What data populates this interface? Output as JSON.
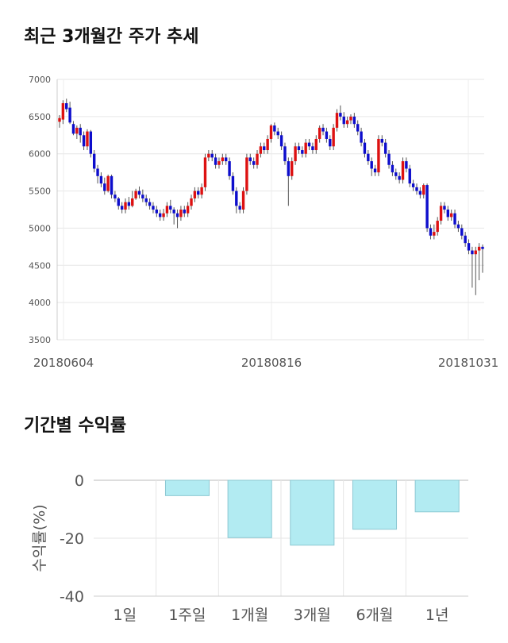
{
  "sections": {
    "price_title": "최근 3개월간 주가 추세",
    "return_title": "기간별 수익률"
  },
  "chart_data": [
    {
      "type": "candlestick",
      "title": "최근 3개월간 주가 추세",
      "ylim": [
        3500,
        7000
      ],
      "y_ticks": [
        3500,
        4000,
        4500,
        5000,
        5500,
        6000,
        6500,
        7000
      ],
      "x_ticks": [
        "20180604",
        "20180816",
        "20181031"
      ],
      "grid": true,
      "colors": {
        "up": "#dd1111",
        "down": "#0d0dcc",
        "wick": "#555555"
      },
      "candles": [
        [
          6430,
          6480,
          6350,
          6520
        ],
        [
          6460,
          6680,
          6400,
          6720
        ],
        [
          6680,
          6600,
          6560,
          6740
        ],
        [
          6620,
          6420,
          6400,
          6700
        ],
        [
          6400,
          6270,
          6250,
          6440
        ],
        [
          6270,
          6350,
          6200,
          6380
        ],
        [
          6350,
          6250,
          6150,
          6400
        ],
        [
          6250,
          6100,
          6050,
          6300
        ],
        [
          6100,
          6300,
          6050,
          6330
        ],
        [
          6300,
          6000,
          5950,
          6320
        ],
        [
          6000,
          5800,
          5750,
          6050
        ],
        [
          5800,
          5700,
          5600,
          5850
        ],
        [
          5700,
          5600,
          5550,
          5750
        ],
        [
          5600,
          5500,
          5450,
          5680
        ],
        [
          5500,
          5700,
          5480,
          5720
        ],
        [
          5700,
          5450,
          5400,
          5720
        ],
        [
          5450,
          5400,
          5350,
          5500
        ],
        [
          5400,
          5300,
          5250,
          5420
        ],
        [
          5300,
          5250,
          5200,
          5350
        ],
        [
          5250,
          5350,
          5200,
          5400
        ],
        [
          5350,
          5300,
          5250,
          5420
        ],
        [
          5300,
          5400,
          5280,
          5500
        ],
        [
          5400,
          5500,
          5380,
          5530
        ],
        [
          5500,
          5450,
          5400,
          5560
        ],
        [
          5450,
          5400,
          5350,
          5520
        ],
        [
          5400,
          5350,
          5300,
          5450
        ],
        [
          5350,
          5300,
          5250,
          5400
        ],
        [
          5300,
          5250,
          5200,
          5350
        ],
        [
          5250,
          5200,
          5150,
          5300
        ],
        [
          5200,
          5150,
          5100,
          5250
        ],
        [
          5150,
          5200,
          5100,
          5260
        ],
        [
          5200,
          5300,
          5150,
          5350
        ],
        [
          5300,
          5250,
          5200,
          5380
        ],
        [
          5250,
          5200,
          5050,
          5280
        ],
        [
          5200,
          5150,
          5000,
          5250
        ],
        [
          5150,
          5250,
          5100,
          5300
        ],
        [
          5250,
          5200,
          5150,
          5300
        ],
        [
          5200,
          5300,
          5150,
          5350
        ],
        [
          5300,
          5400,
          5250,
          5450
        ],
        [
          5400,
          5500,
          5350,
          5550
        ],
        [
          5500,
          5450,
          5400,
          5550
        ],
        [
          5450,
          5550,
          5400,
          5600
        ],
        [
          5550,
          5950,
          5500,
          6000
        ],
        [
          5950,
          6000,
          5900,
          6050
        ],
        [
          6000,
          5950,
          5900,
          6050
        ],
        [
          5950,
          5850,
          5800,
          6000
        ],
        [
          5850,
          5900,
          5800,
          5950
        ],
        [
          5900,
          5950,
          5850,
          6000
        ],
        [
          5950,
          5900,
          5850,
          6000
        ],
        [
          5900,
          5700,
          5650,
          5950
        ],
        [
          5700,
          5500,
          5450,
          5750
        ],
        [
          5500,
          5300,
          5200,
          5550
        ],
        [
          5300,
          5250,
          5200,
          5350
        ],
        [
          5250,
          5500,
          5200,
          5550
        ],
        [
          5500,
          5950,
          5450,
          6000
        ],
        [
          5950,
          5900,
          5850,
          6000
        ],
        [
          5900,
          5850,
          5800,
          5950
        ],
        [
          5850,
          6000,
          5800,
          6050
        ],
        [
          6000,
          6100,
          5950,
          6150
        ],
        [
          6100,
          6050,
          6000,
          6150
        ],
        [
          6050,
          6200,
          6000,
          6250
        ],
        [
          6200,
          6380,
          6150,
          6400
        ],
        [
          6380,
          6300,
          6250,
          6420
        ],
        [
          6300,
          6250,
          6200,
          6350
        ],
        [
          6250,
          6100,
          6050,
          6300
        ],
        [
          6100,
          5900,
          5850,
          6150
        ],
        [
          5900,
          5700,
          5300,
          5950
        ],
        [
          5700,
          5900,
          5650,
          5950
        ],
        [
          5900,
          6100,
          5850,
          6150
        ],
        [
          6100,
          6050,
          6000,
          6150
        ],
        [
          6050,
          6000,
          5950,
          6100
        ],
        [
          6000,
          6150,
          5950,
          6200
        ],
        [
          6150,
          6100,
          6050,
          6200
        ],
        [
          6100,
          6050,
          6000,
          6150
        ],
        [
          6050,
          6200,
          6000,
          6250
        ],
        [
          6200,
          6350,
          6150,
          6380
        ],
        [
          6350,
          6300,
          6250,
          6400
        ],
        [
          6300,
          6200,
          6150,
          6350
        ],
        [
          6200,
          6100,
          6050,
          6250
        ],
        [
          6100,
          6350,
          6050,
          6400
        ],
        [
          6350,
          6550,
          6300,
          6600
        ],
        [
          6550,
          6500,
          6450,
          6650
        ],
        [
          6500,
          6400,
          6350,
          6560
        ],
        [
          6400,
          6450,
          6350,
          6500
        ],
        [
          6450,
          6500,
          6400,
          6530
        ],
        [
          6500,
          6400,
          6350,
          6550
        ],
        [
          6400,
          6300,
          6250,
          6450
        ],
        [
          6300,
          6150,
          6100,
          6350
        ],
        [
          6150,
          6000,
          5950,
          6200
        ],
        [
          6000,
          5900,
          5850,
          6050
        ],
        [
          5900,
          5800,
          5700,
          5950
        ],
        [
          5800,
          5750,
          5700,
          5850
        ],
        [
          5750,
          6200,
          5700,
          6250
        ],
        [
          6200,
          6150,
          6100,
          6250
        ],
        [
          6150,
          6000,
          5950,
          6200
        ],
        [
          6000,
          5850,
          5800,
          6050
        ],
        [
          5850,
          5750,
          5700,
          5900
        ],
        [
          5750,
          5700,
          5650,
          5800
        ],
        [
          5700,
          5650,
          5600,
          5750
        ],
        [
          5650,
          5900,
          5600,
          5950
        ],
        [
          5900,
          5800,
          5750,
          5950
        ],
        [
          5800,
          5600,
          5550,
          5850
        ],
        [
          5600,
          5550,
          5500,
          5650
        ],
        [
          5550,
          5500,
          5450,
          5600
        ],
        [
          5500,
          5450,
          5400,
          5550
        ],
        [
          5450,
          5580,
          5400,
          5600
        ],
        [
          5580,
          5000,
          4950,
          5600
        ],
        [
          5000,
          4900,
          4850,
          5050
        ],
        [
          4900,
          4950,
          4850,
          5050
        ],
        [
          4950,
          5100,
          4900,
          5150
        ],
        [
          5100,
          5300,
          5050,
          5350
        ],
        [
          5300,
          5250,
          5200,
          5350
        ],
        [
          5250,
          5150,
          5100,
          5300
        ],
        [
          5150,
          5200,
          5100,
          5250
        ],
        [
          5200,
          5050,
          5000,
          5250
        ],
        [
          5050,
          5000,
          4950,
          5100
        ],
        [
          5000,
          4900,
          4850,
          5050
        ],
        [
          4900,
          4800,
          4750,
          4950
        ],
        [
          4800,
          4700,
          4650,
          4850
        ],
        [
          4700,
          4650,
          4200,
          4750
        ],
        [
          4650,
          4700,
          4100,
          4750
        ],
        [
          4700,
          4750,
          4300,
          4800
        ],
        [
          4750,
          4720,
          4400,
          4780
        ]
      ]
    },
    {
      "type": "bar",
      "title": "기간별 수익률",
      "ylabel": "수익률(%)",
      "ylim": [
        -40,
        0
      ],
      "y_ticks": [
        0,
        -20,
        -40
      ],
      "categories": [
        "1일",
        "1주일",
        "1개월",
        "3개월",
        "6개월",
        "1년"
      ],
      "values": [
        0,
        -5.3,
        -19.8,
        -22.4,
        -16.9,
        -10.9
      ],
      "colors": {
        "fill": "#b2ebf2",
        "stroke": "#8cc8d2"
      },
      "grid": true
    }
  ]
}
